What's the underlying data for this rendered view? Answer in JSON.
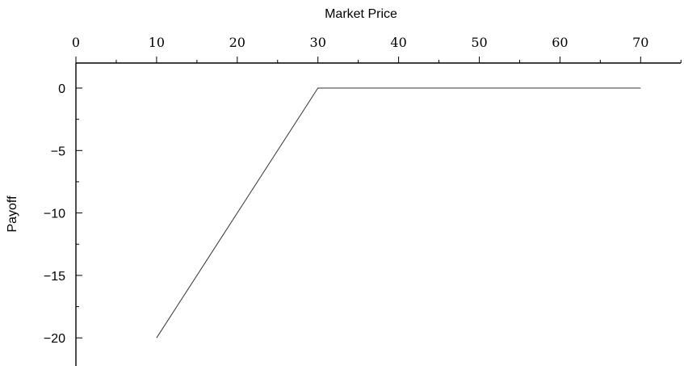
{
  "chart_data": {
    "type": "line",
    "title": "",
    "xlabel": "Market Price",
    "ylabel": "Payoff",
    "xlim": [
      0,
      75
    ],
    "ylim": [
      -22,
      2
    ],
    "x_axis_position": "top",
    "grid": false,
    "legend": "none",
    "xticks": [
      0,
      10,
      20,
      30,
      40,
      50,
      60,
      70
    ],
    "xtick_labels": [
      "0",
      "10",
      "20",
      "30",
      "40",
      "50",
      "60",
      "70"
    ],
    "yticks": [
      0,
      -5,
      -10,
      -15,
      -20
    ],
    "ytick_labels": [
      "0",
      "−5",
      "−10",
      "−15",
      "−20"
    ],
    "x_minor_step": 5,
    "y_minor_step": 2.5,
    "series": [
      {
        "x": [
          10,
          30,
          70
        ],
        "y": [
          -20,
          0,
          0
        ]
      }
    ],
    "line_color": "#333333"
  }
}
